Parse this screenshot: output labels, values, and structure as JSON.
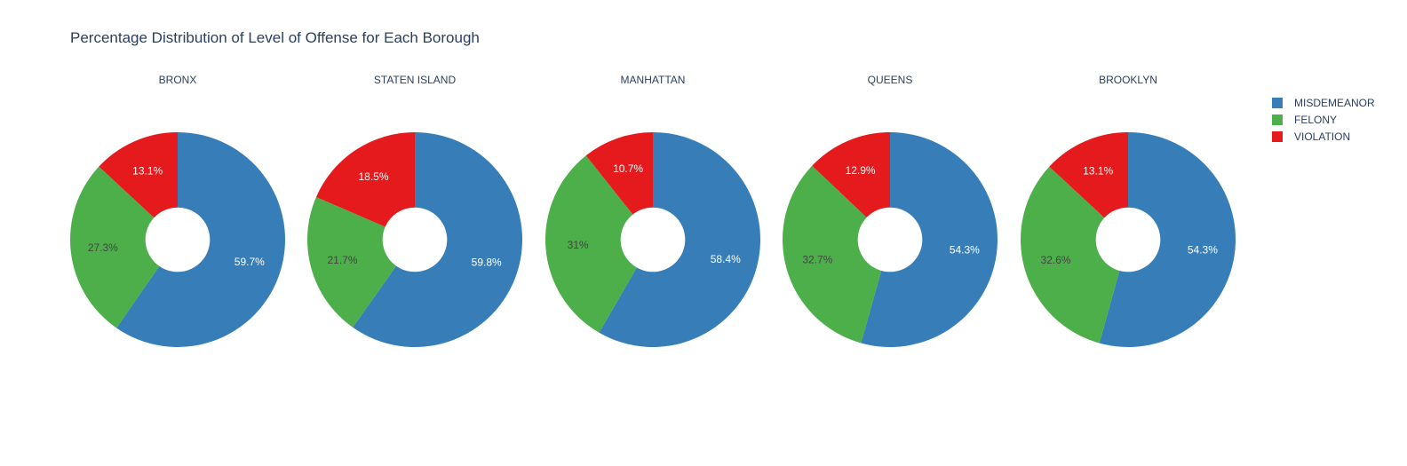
{
  "chart_data": {
    "type": "pie",
    "title": "Percentage Distribution of Level of Offense for Each Borough",
    "hole": 0.3,
    "legend_position": "top-right",
    "series": [
      {
        "name": "MISDEMEANOR",
        "color": "#377eb8",
        "label_color": "#ffffff"
      },
      {
        "name": "FELONY",
        "color": "#4daf4a",
        "label_color": "#444444"
      },
      {
        "name": "VIOLATION",
        "color": "#e41a1c",
        "label_color": "#ffffff"
      }
    ],
    "pies": [
      {
        "title": "BRONX",
        "values": [
          59.7,
          27.3,
          13.1
        ],
        "labels": [
          "59.7%",
          "27.3%",
          "13.1%"
        ]
      },
      {
        "title": "STATEN ISLAND",
        "values": [
          59.8,
          21.7,
          18.5
        ],
        "labels": [
          "59.8%",
          "21.7%",
          "18.5%"
        ]
      },
      {
        "title": "MANHATTAN",
        "values": [
          58.4,
          31,
          10.7
        ],
        "labels": [
          "58.4%",
          "31%",
          "10.7%"
        ]
      },
      {
        "title": "QUEENS",
        "values": [
          54.3,
          32.7,
          12.9
        ],
        "labels": [
          "54.3%",
          "32.7%",
          "12.9%"
        ]
      },
      {
        "title": "BROOKLYN",
        "values": [
          54.3,
          32.6,
          13.1
        ],
        "labels": [
          "54.3%",
          "32.6%",
          "13.1%"
        ]
      }
    ]
  }
}
